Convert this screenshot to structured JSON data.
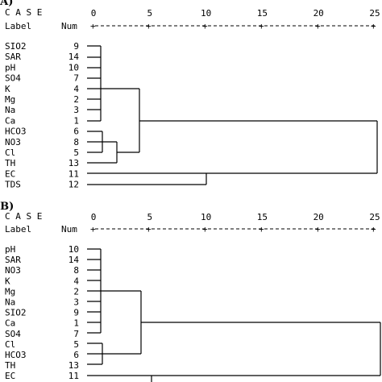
{
  "panels": [
    {
      "panel_label": "(A)",
      "case_heading": "C A S E",
      "label_heading": "Label",
      "num_heading": "Num",
      "scale_ticks": [
        "0",
        "5",
        "10",
        "15",
        "20",
        "25"
      ],
      "rows": [
        {
          "label": "SIO2",
          "num": "9"
        },
        {
          "label": "SAR",
          "num": "14"
        },
        {
          "label": "pH",
          "num": "10"
        },
        {
          "label": "SO4",
          "num": "7"
        },
        {
          "label": "K",
          "num": "4"
        },
        {
          "label": "Mg",
          "num": "2"
        },
        {
          "label": "Na",
          "num": "3"
        },
        {
          "label": "Ca",
          "num": "1"
        },
        {
          "label": "HCO3",
          "num": "6"
        },
        {
          "label": "NO3",
          "num": "8"
        },
        {
          "label": "Cl",
          "num": "5"
        },
        {
          "label": "TH",
          "num": "13"
        },
        {
          "label": "EC",
          "num": "11"
        },
        {
          "label": "TDS",
          "num": "12"
        }
      ]
    },
    {
      "panel_label": "(B)",
      "case_heading": "C A S E",
      "label_heading": "Label",
      "num_heading": "Num",
      "scale_ticks": [
        "0",
        "5",
        "10",
        "15",
        "20",
        "25"
      ],
      "rows": [
        {
          "label": "pH",
          "num": "10"
        },
        {
          "label": "SAR",
          "num": "14"
        },
        {
          "label": "NO3",
          "num": "8"
        },
        {
          "label": "K",
          "num": "4"
        },
        {
          "label": "Mg",
          "num": "2"
        },
        {
          "label": "Na",
          "num": "3"
        },
        {
          "label": "SIO2",
          "num": "9"
        },
        {
          "label": "Ca",
          "num": "1"
        },
        {
          "label": "SO4",
          "num": "7"
        },
        {
          "label": "Cl",
          "num": "5"
        },
        {
          "label": "HCO3",
          "num": "6"
        },
        {
          "label": "TH",
          "num": "13"
        },
        {
          "label": "EC",
          "num": "11"
        }
      ]
    }
  ]
}
